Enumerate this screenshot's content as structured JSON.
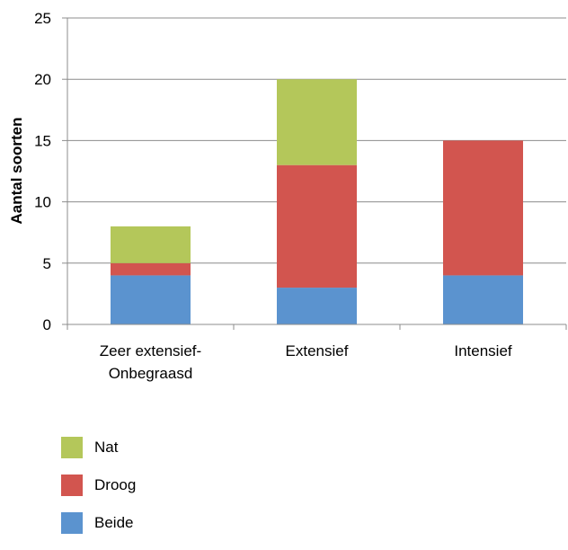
{
  "chart_data": {
    "type": "bar",
    "stacked": true,
    "categories": [
      "Zeer extensief-Onbegraasd",
      "Extensief",
      "Intensief"
    ],
    "category_label_lines": [
      [
        "Zeer extensief-",
        "Onbegraasd"
      ],
      [
        "Extensief"
      ],
      [
        "Intensief"
      ]
    ],
    "series": [
      {
        "name": "Beide",
        "color": "#5b93cf",
        "values": [
          4,
          3,
          4
        ]
      },
      {
        "name": "Droog",
        "color": "#d2554f",
        "values": [
          1,
          10,
          11
        ]
      },
      {
        "name": "Nat",
        "color": "#b4c75a",
        "values": [
          3,
          7,
          0
        ]
      }
    ],
    "ylabel": "Aantal soorten",
    "xlabel": "",
    "ylim": [
      0,
      25
    ],
    "yticks": [
      0,
      5,
      10,
      15,
      20,
      25
    ],
    "grid": true,
    "legend_position": "bottom-left",
    "legend_order": [
      "Nat",
      "Droog",
      "Beide"
    ]
  }
}
